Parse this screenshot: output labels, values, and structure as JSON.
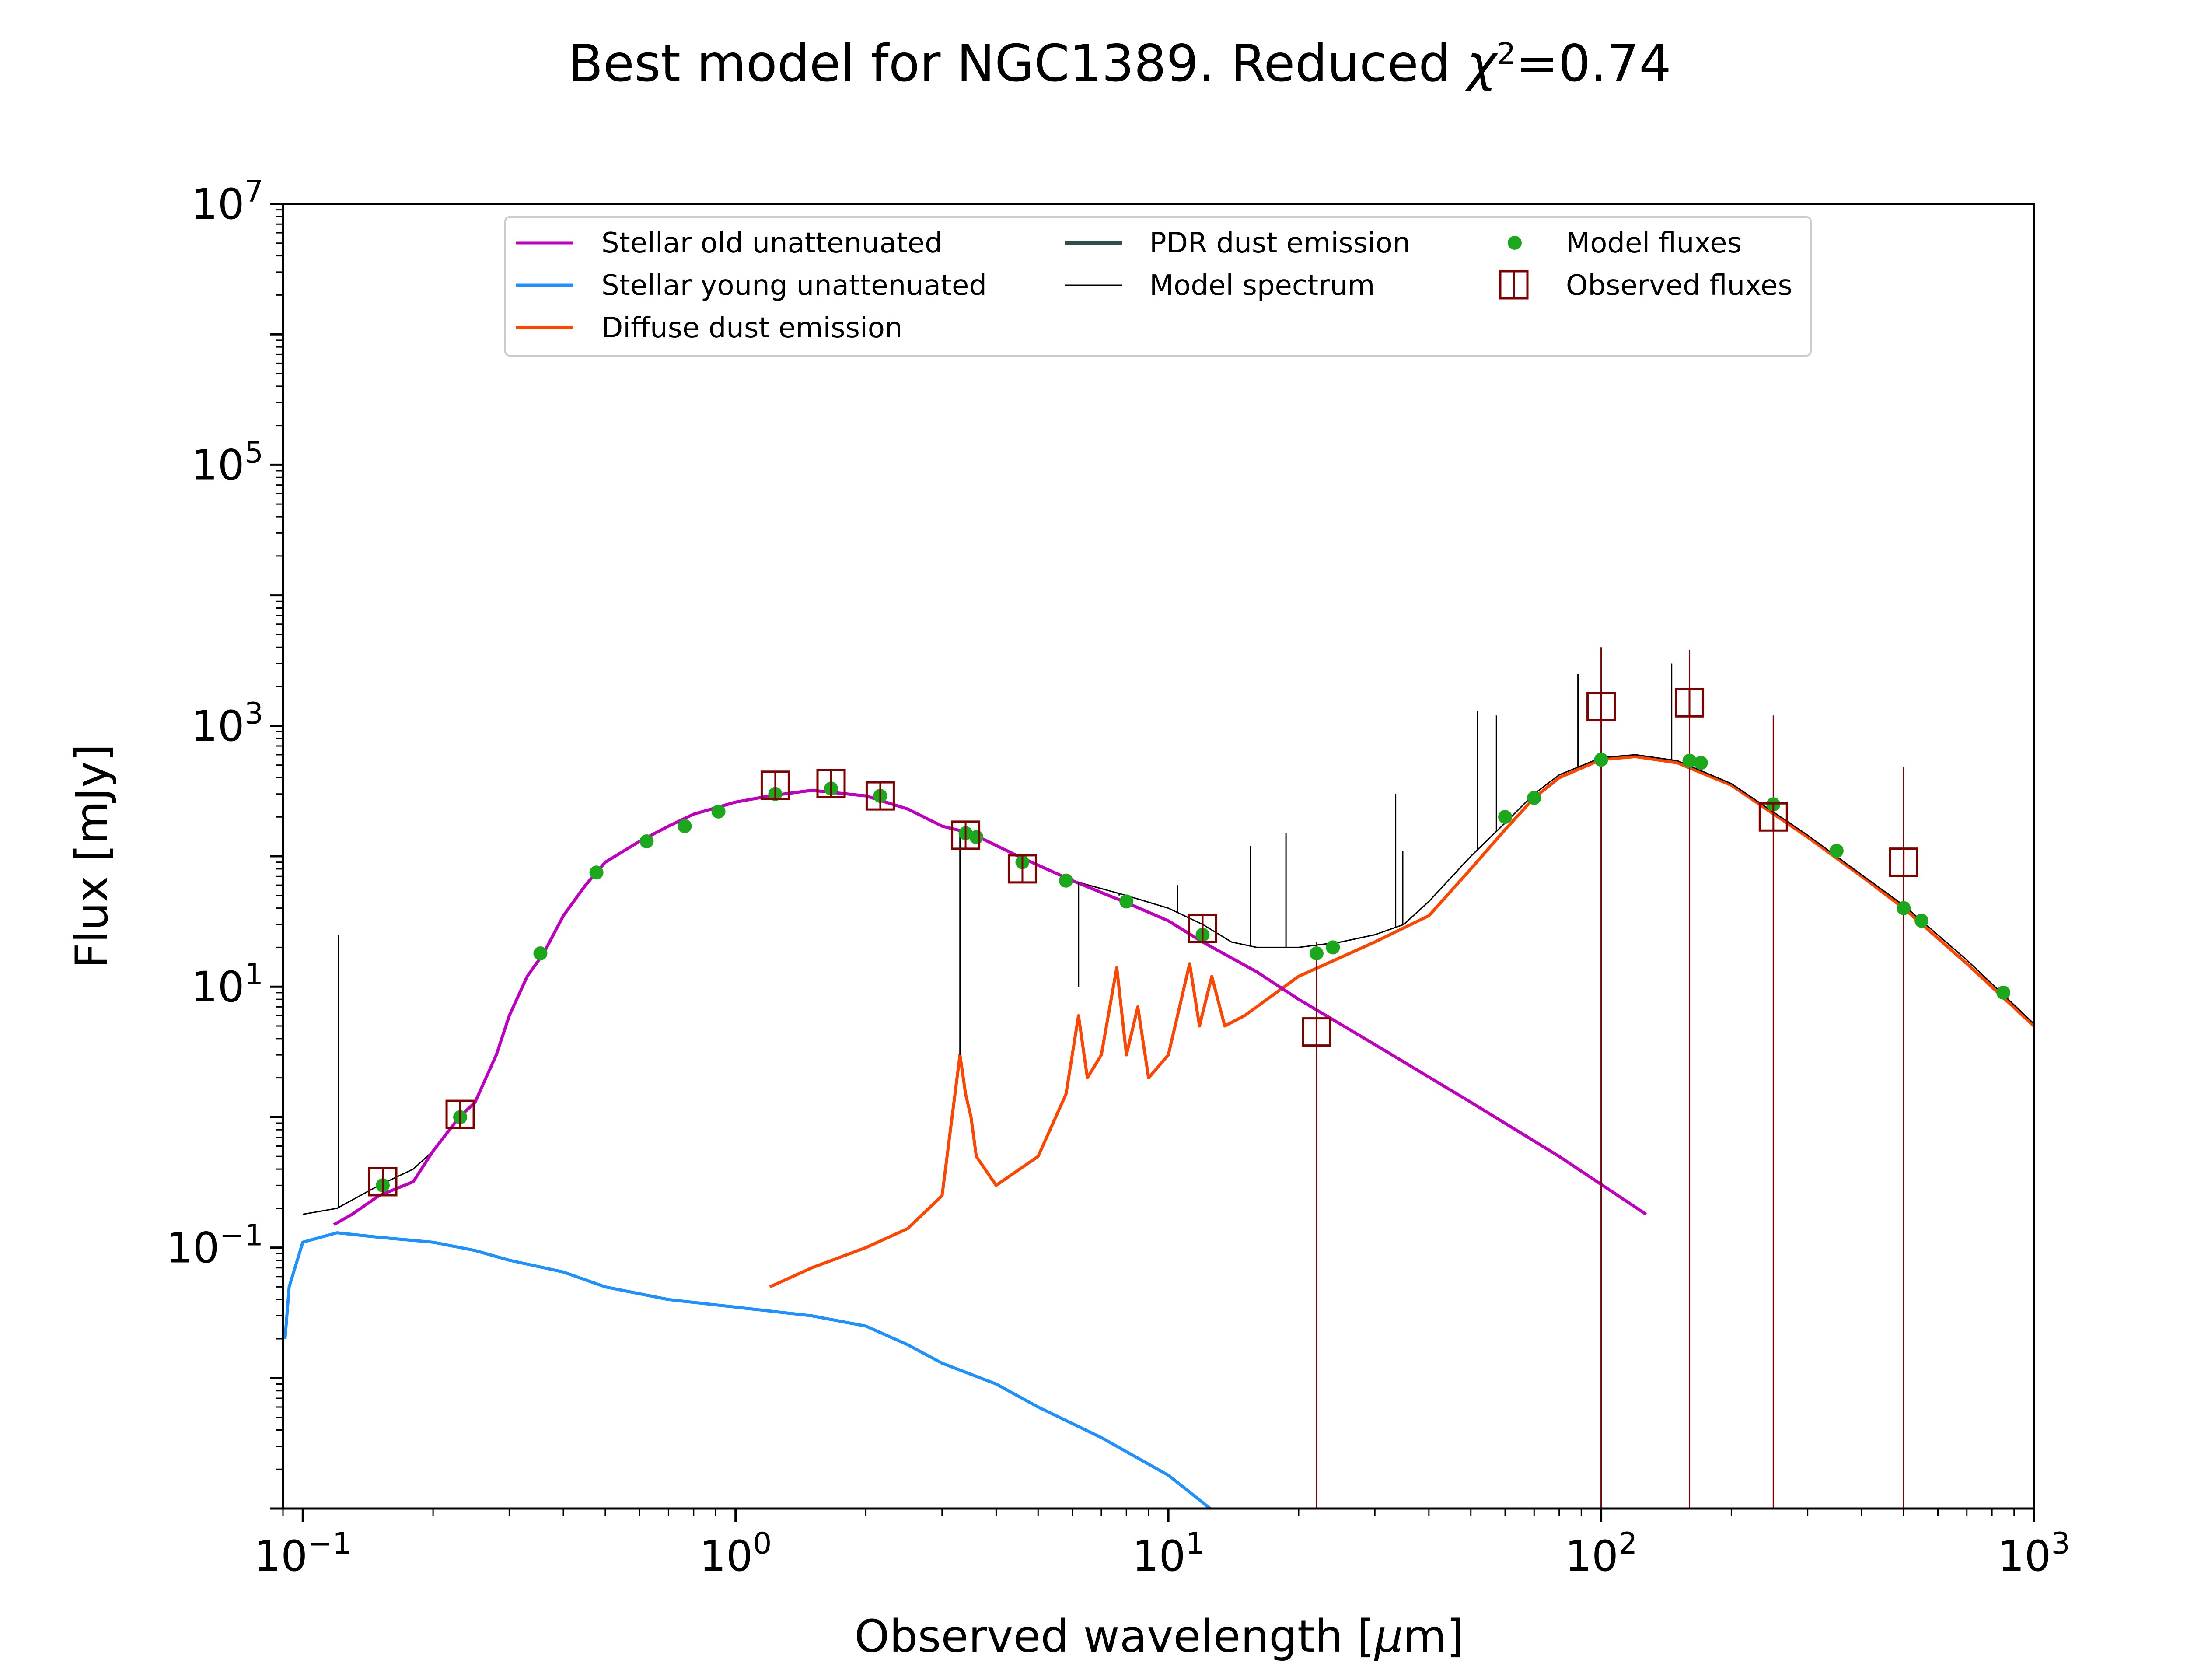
{
  "chart_data": {
    "type": "line",
    "title_prefix": "Best model for NGC1389. Reduced ",
    "title_symbol": "χ",
    "title_symbol_sup": "2",
    "title_suffix": "=0.74",
    "xlabel_prefix": "Observed wavelength [",
    "xlabel_symbol": "μ",
    "xlabel_suffix": "m]",
    "ylabel": "Flux [mJy]",
    "x_scale": "log",
    "y_scale": "log",
    "xlim": [
      0.09,
      1000
    ],
    "ylim": [
      0.001,
      10000000
    ],
    "x_ticks": [
      {
        "base": "10",
        "exp": "−1",
        "value": 0.1
      },
      {
        "base": "10",
        "exp": "0",
        "value": 1
      },
      {
        "base": "10",
        "exp": "1",
        "value": 10
      },
      {
        "base": "10",
        "exp": "2",
        "value": 100
      },
      {
        "base": "10",
        "exp": "3",
        "value": 1000
      }
    ],
    "y_ticks": [
      {
        "base": "10",
        "exp": "−1",
        "value": 0.1
      },
      {
        "base": "10",
        "exp": "1",
        "value": 10
      },
      {
        "base": "10",
        "exp": "3",
        "value": 1000
      },
      {
        "base": "10",
        "exp": "5",
        "value": 100000
      },
      {
        "base": "10",
        "exp": "7",
        "value": 10000000
      }
    ],
    "legend_position": "top",
    "grid": false,
    "series": [
      {
        "name": "Stellar old unattenuated",
        "color": "#bf00bf",
        "points": [
          [
            0.118,
            0.15
          ],
          [
            0.13,
            0.18
          ],
          [
            0.15,
            0.25
          ],
          [
            0.18,
            0.32
          ],
          [
            0.2,
            0.55
          ],
          [
            0.23,
            1.0
          ],
          [
            0.25,
            1.3
          ],
          [
            0.28,
            3
          ],
          [
            0.3,
            6
          ],
          [
            0.33,
            12
          ],
          [
            0.36,
            18
          ],
          [
            0.4,
            35
          ],
          [
            0.45,
            60
          ],
          [
            0.5,
            90
          ],
          [
            0.6,
            130
          ],
          [
            0.7,
            170
          ],
          [
            0.8,
            210
          ],
          [
            1.0,
            260
          ],
          [
            1.2,
            290
          ],
          [
            1.5,
            320
          ],
          [
            2.0,
            290
          ],
          [
            2.5,
            230
          ],
          [
            3.0,
            170
          ],
          [
            3.5,
            150
          ],
          [
            4.5,
            100
          ],
          [
            6,
            65
          ],
          [
            8,
            44
          ],
          [
            10,
            32
          ],
          [
            12,
            22
          ],
          [
            16,
            13
          ],
          [
            20,
            8
          ],
          [
            30,
            3.6
          ],
          [
            50,
            1.3
          ],
          [
            80,
            0.5
          ],
          [
            127,
            0.18
          ]
        ]
      },
      {
        "name": "Stellar young unattenuated",
        "color": "#1e90ff",
        "points": [
          [
            0.091,
            0.02
          ],
          [
            0.093,
            0.05
          ],
          [
            0.1,
            0.11
          ],
          [
            0.12,
            0.13
          ],
          [
            0.15,
            0.12
          ],
          [
            0.2,
            0.11
          ],
          [
            0.25,
            0.095
          ],
          [
            0.3,
            0.08
          ],
          [
            0.4,
            0.065
          ],
          [
            0.5,
            0.05
          ],
          [
            0.7,
            0.04
          ],
          [
            1.0,
            0.035
          ],
          [
            1.5,
            0.03
          ],
          [
            2.0,
            0.025
          ],
          [
            2.5,
            0.018
          ],
          [
            3.0,
            0.013
          ],
          [
            4.0,
            0.009
          ],
          [
            5.0,
            0.006
          ],
          [
            7.0,
            0.0035
          ],
          [
            10,
            0.0018
          ],
          [
            12.5,
            0.001
          ]
        ]
      },
      {
        "name": "Diffuse dust emission",
        "color": "#ff4500",
        "points": [
          [
            1.2,
            0.05
          ],
          [
            1.5,
            0.07
          ],
          [
            2.0,
            0.1
          ],
          [
            2.5,
            0.14
          ],
          [
            3.0,
            0.25
          ],
          [
            3.3,
            3
          ],
          [
            3.4,
            1.5
          ],
          [
            3.5,
            1.0
          ],
          [
            3.6,
            0.5
          ],
          [
            4.0,
            0.3
          ],
          [
            5.0,
            0.5
          ],
          [
            5.8,
            1.5
          ],
          [
            6.2,
            6
          ],
          [
            6.5,
            2
          ],
          [
            7.0,
            3
          ],
          [
            7.6,
            14
          ],
          [
            8.0,
            3
          ],
          [
            8.5,
            7
          ],
          [
            9.0,
            2
          ],
          [
            10,
            3
          ],
          [
            11.2,
            15
          ],
          [
            11.8,
            5
          ],
          [
            12.6,
            12
          ],
          [
            13.5,
            5
          ],
          [
            15,
            6
          ],
          [
            20,
            12
          ],
          [
            30,
            22
          ],
          [
            40,
            35
          ],
          [
            50,
            80
          ],
          [
            60,
            160
          ],
          [
            70,
            280
          ],
          [
            80,
            400
          ],
          [
            100,
            550
          ],
          [
            120,
            580
          ],
          [
            150,
            520
          ],
          [
            200,
            350
          ],
          [
            300,
            140
          ],
          [
            400,
            70
          ],
          [
            500,
            40
          ],
          [
            700,
            15
          ],
          [
            1000,
            5
          ]
        ]
      },
      {
        "name": "PDR dust emission",
        "color": "#2f4f4f",
        "points": []
      },
      {
        "name": "Model spectrum",
        "color": "#000000",
        "points": [
          [
            0.1,
            0.18
          ],
          [
            0.12,
            0.2
          ],
          [
            0.15,
            0.3
          ],
          [
            0.18,
            0.4
          ],
          [
            0.2,
            0.55
          ],
          [
            0.23,
            1.0
          ],
          [
            0.25,
            1.3
          ],
          [
            0.28,
            3
          ],
          [
            0.3,
            6
          ],
          [
            0.33,
            12
          ],
          [
            0.36,
            18
          ],
          [
            0.4,
            35
          ],
          [
            0.45,
            60
          ],
          [
            0.5,
            90
          ],
          [
            0.6,
            130
          ],
          [
            0.7,
            170
          ],
          [
            0.8,
            210
          ],
          [
            1.0,
            260
          ],
          [
            1.2,
            290
          ],
          [
            1.5,
            320
          ],
          [
            2.0,
            290
          ],
          [
            2.5,
            230
          ],
          [
            3.0,
            170
          ],
          [
            3.5,
            150
          ],
          [
            4.5,
            100
          ],
          [
            6,
            65
          ],
          [
            8,
            50
          ],
          [
            10,
            40
          ],
          [
            12,
            30
          ],
          [
            14,
            22
          ],
          [
            16,
            20
          ],
          [
            20,
            20
          ],
          [
            25,
            22
          ],
          [
            30,
            25
          ],
          [
            35,
            30
          ],
          [
            40,
            45
          ],
          [
            50,
            100
          ],
          [
            60,
            180
          ],
          [
            70,
            300
          ],
          [
            80,
            420
          ],
          [
            100,
            570
          ],
          [
            120,
            600
          ],
          [
            150,
            540
          ],
          [
            200,
            360
          ],
          [
            300,
            145
          ],
          [
            400,
            72
          ],
          [
            500,
            42
          ],
          [
            700,
            16
          ],
          [
            1000,
            5.2
          ]
        ]
      }
    ],
    "spectrum_spikes": [
      [
        0.121,
        25
      ],
      [
        3.3,
        3
      ],
      [
        6.2,
        10
      ],
      [
        7.7,
        50
      ],
      [
        10.5,
        60
      ],
      [
        15.5,
        120
      ],
      [
        18.7,
        150
      ],
      [
        33.5,
        300
      ],
      [
        34.8,
        110
      ],
      [
        51.8,
        1300
      ],
      [
        57.3,
        1200
      ],
      [
        88.4,
        2500
      ],
      [
        145.5,
        3000
      ]
    ],
    "model_fluxes": {
      "name": "Model fluxes",
      "color": "#1ca81c",
      "points": [
        [
          0.153,
          0.3
        ],
        [
          0.231,
          1.0
        ],
        [
          0.354,
          18
        ],
        [
          0.477,
          75
        ],
        [
          0.623,
          130
        ],
        [
          0.763,
          170
        ],
        [
          0.913,
          220
        ],
        [
          1.235,
          300
        ],
        [
          1.662,
          330
        ],
        [
          2.159,
          290
        ],
        [
          3.4,
          150
        ],
        [
          3.6,
          140
        ],
        [
          4.6,
          90
        ],
        [
          5.8,
          65
        ],
        [
          8.0,
          45
        ],
        [
          12.0,
          25
        ],
        [
          22.0,
          18
        ],
        [
          24.0,
          20
        ],
        [
          60,
          200
        ],
        [
          70,
          280
        ],
        [
          100,
          550
        ],
        [
          160,
          540
        ],
        [
          170,
          520
        ],
        [
          250,
          250
        ],
        [
          350,
          110
        ],
        [
          500,
          40
        ],
        [
          550,
          32
        ],
        [
          850,
          9
        ]
      ]
    },
    "observed_fluxes": {
      "name": "Observed fluxes",
      "color": "#800000",
      "points": [
        [
          0.153,
          0.32
        ],
        [
          0.231,
          1.05
        ],
        [
          1.235,
          350
        ],
        [
          1.662,
          360
        ],
        [
          2.159,
          290
        ],
        [
          3.4,
          145
        ],
        [
          4.6,
          80
        ],
        [
          12.0,
          28
        ],
        [
          22.0,
          4.5
        ],
        [
          100,
          1400
        ],
        [
          160,
          1500
        ],
        [
          250,
          200
        ],
        [
          500,
          90
        ]
      ],
      "error_bars": [
        [
          22.0,
          0.001,
          22
        ],
        [
          100,
          0.001,
          4000
        ],
        [
          160,
          0.001,
          3800
        ],
        [
          250,
          0.001,
          1200
        ],
        [
          500,
          0.001,
          480
        ]
      ]
    }
  }
}
